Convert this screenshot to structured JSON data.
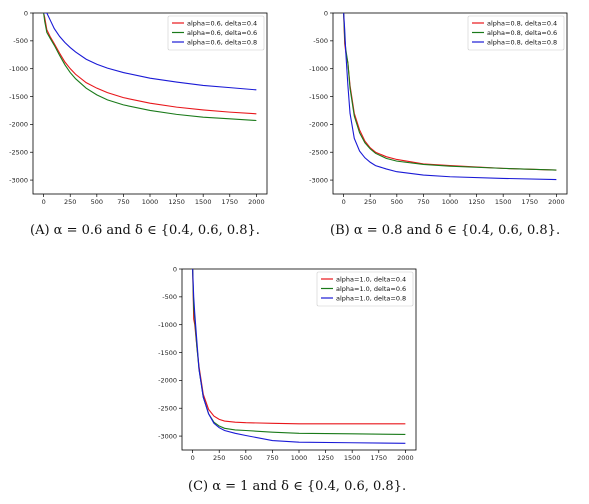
{
  "chart_data": [
    {
      "type": "line",
      "xticks": [
        0,
        250,
        500,
        750,
        1000,
        1250,
        1500,
        1750,
        2000
      ],
      "yticks": [
        0,
        -500,
        -1000,
        -1500,
        -2000,
        -2500,
        -3000
      ],
      "xlim": [
        -100,
        2100
      ],
      "ylim": [
        -3250,
        0
      ],
      "legend_position": "top-right",
      "grid": false,
      "caption": "(A) α = 0.6 and δ ∈ {0.4, 0.6, 0.8}.",
      "series": [
        {
          "name": "alpha=0.6, delta=0.4",
          "color": "#e8161b",
          "x": [
            0,
            10,
            30,
            60,
            100,
            150,
            200,
            250,
            300,
            400,
            500,
            600,
            750,
            1000,
            1250,
            1500,
            1750,
            2000
          ],
          "y": [
            0,
            -80,
            -300,
            -420,
            -550,
            -720,
            -880,
            -1000,
            -1100,
            -1250,
            -1350,
            -1430,
            -1520,
            -1620,
            -1690,
            -1740,
            -1780,
            -1810
          ]
        },
        {
          "name": "alpha=0.6, delta=0.6",
          "color": "#1a7a1a",
          "x": [
            0,
            10,
            30,
            60,
            100,
            150,
            200,
            250,
            300,
            400,
            500,
            600,
            750,
            1000,
            1250,
            1500,
            1750,
            2000
          ],
          "y": [
            0,
            -150,
            -350,
            -450,
            -580,
            -760,
            -930,
            -1070,
            -1180,
            -1350,
            -1470,
            -1560,
            -1650,
            -1750,
            -1820,
            -1870,
            -1900,
            -1930
          ]
        },
        {
          "name": "alpha=0.6, delta=0.8",
          "color": "#1a1ad6",
          "x": [
            0,
            30,
            60,
            100,
            150,
            200,
            250,
            300,
            400,
            500,
            600,
            750,
            1000,
            1250,
            1500,
            1750,
            2000
          ],
          "y": [
            0,
            0,
            -120,
            -280,
            -420,
            -530,
            -620,
            -700,
            -830,
            -920,
            -990,
            -1070,
            -1170,
            -1240,
            -1300,
            -1340,
            -1380
          ]
        }
      ]
    },
    {
      "type": "line",
      "xticks": [
        0,
        250,
        500,
        750,
        1000,
        1250,
        1500,
        1750,
        2000
      ],
      "yticks": [
        0,
        -500,
        -1000,
        -1500,
        -2000,
        -2500,
        -3000
      ],
      "xlim": [
        -100,
        2100
      ],
      "ylim": [
        -3250,
        0
      ],
      "legend_position": "top-right",
      "grid": false,
      "caption": "(B) α = 0.8 and δ ∈ {0.4, 0.6, 0.8}.",
      "series": [
        {
          "name": "alpha=0.8, delta=0.4",
          "color": "#e8161b",
          "x": [
            0,
            10,
            20,
            40,
            60,
            100,
            150,
            200,
            250,
            300,
            400,
            500,
            750,
            1000,
            1500,
            2000
          ],
          "y": [
            0,
            -550,
            -700,
            -900,
            -1300,
            -1800,
            -2100,
            -2300,
            -2420,
            -2500,
            -2580,
            -2630,
            -2710,
            -2740,
            -2790,
            -2820
          ]
        },
        {
          "name": "alpha=0.8, delta=0.6",
          "color": "#1a7a1a",
          "x": [
            0,
            10,
            20,
            40,
            60,
            100,
            150,
            200,
            250,
            300,
            400,
            500,
            750,
            1000,
            1500,
            2000
          ],
          "y": [
            0,
            -450,
            -650,
            -900,
            -1350,
            -1850,
            -2150,
            -2330,
            -2440,
            -2520,
            -2610,
            -2660,
            -2720,
            -2750,
            -2790,
            -2820
          ]
        },
        {
          "name": "alpha=0.8, delta=0.8",
          "color": "#1a1ad6",
          "x": [
            0,
            10,
            20,
            40,
            60,
            100,
            150,
            200,
            250,
            300,
            400,
            500,
            750,
            1000,
            1500,
            2000
          ],
          "y": [
            0,
            -300,
            -700,
            -1300,
            -1800,
            -2250,
            -2480,
            -2600,
            -2680,
            -2740,
            -2800,
            -2850,
            -2910,
            -2940,
            -2970,
            -2990
          ]
        }
      ]
    },
    {
      "type": "line",
      "xticks": [
        0,
        250,
        500,
        750,
        1000,
        1250,
        1500,
        1750,
        2000
      ],
      "yticks": [
        0,
        -500,
        -1000,
        -1500,
        -2000,
        -2500,
        -3000
      ],
      "xlim": [
        -100,
        2100
      ],
      "ylim": [
        -3250,
        0
      ],
      "legend_position": "top-right",
      "grid": false,
      "caption": "(C) α = 1 and δ ∈ {0.4, 0.6, 0.8}.",
      "series": [
        {
          "name": "alpha=1.0, delta=0.4",
          "color": "#e8161b",
          "x": [
            0,
            10,
            20,
            40,
            60,
            100,
            150,
            200,
            250,
            300,
            400,
            500,
            750,
            1000,
            1500,
            2000
          ],
          "y": [
            0,
            -900,
            -1000,
            -1400,
            -1750,
            -2250,
            -2520,
            -2640,
            -2700,
            -2730,
            -2750,
            -2760,
            -2770,
            -2780,
            -2780,
            -2780
          ]
        },
        {
          "name": "alpha=1.0, delta=0.6",
          "color": "#1a7a1a",
          "x": [
            0,
            10,
            20,
            40,
            60,
            100,
            150,
            200,
            250,
            300,
            400,
            500,
            750,
            1000,
            1500,
            2000
          ],
          "y": [
            0,
            -700,
            -900,
            -1400,
            -1800,
            -2300,
            -2600,
            -2750,
            -2820,
            -2860,
            -2890,
            -2900,
            -2930,
            -2950,
            -2960,
            -2970
          ]
        },
        {
          "name": "alpha=1.0, delta=0.8",
          "color": "#1a1ad6",
          "x": [
            0,
            10,
            20,
            40,
            60,
            100,
            150,
            200,
            250,
            300,
            400,
            500,
            750,
            1000,
            1500,
            2000
          ],
          "y": [
            0,
            -500,
            -800,
            -1300,
            -1800,
            -2300,
            -2600,
            -2770,
            -2850,
            -2900,
            -2950,
            -2990,
            -3080,
            -3110,
            -3120,
            -3130
          ]
        }
      ]
    }
  ]
}
